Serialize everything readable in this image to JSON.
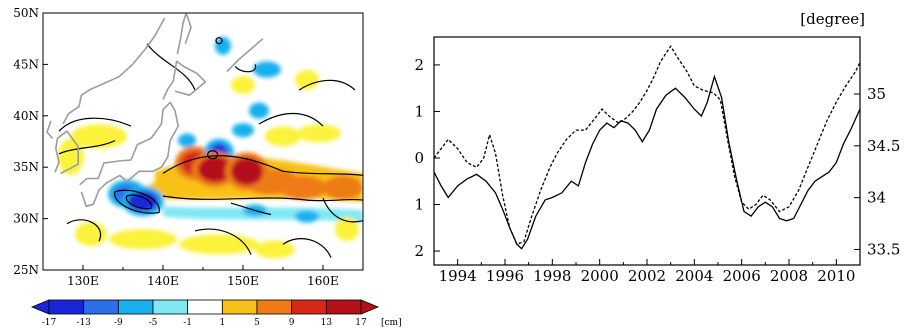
{
  "colors": {
    "scale": [
      "#1a25d8",
      "#2c6fe8",
      "#18b0ee",
      "#7fe8f4",
      "#ffffff",
      "#fbf23a",
      "#f8c117",
      "#ee7b15",
      "#d8281a",
      "#b4101a"
    ],
    "contour": "#000000",
    "coast": "#9c9c9c"
  },
  "chart_data": [
    {
      "type": "heatmap",
      "title": "",
      "x_ticks": [
        "130E",
        "140E",
        "150E",
        "160E"
      ],
      "y_ticks": [
        "50N",
        "45N",
        "40N",
        "35N",
        "30N",
        "25N"
      ],
      "xlim": [
        125,
        165
      ],
      "ylim": [
        25,
        50
      ],
      "colorbar": {
        "labels": [
          "-17",
          "-13",
          "-9",
          "-5",
          "-1",
          "1",
          "5",
          "9",
          "13",
          "17"
        ],
        "unit": "[cm]"
      },
      "anomaly_blobs": [
        {
          "lon": 146.5,
          "lat": 34.8,
          "value": 15
        },
        {
          "lon": 144.0,
          "lat": 35.4,
          "value": 13
        },
        {
          "lon": 150.5,
          "lat": 34.6,
          "value": 15
        },
        {
          "lon": 153.5,
          "lat": 33.6,
          "value": 9
        },
        {
          "lon": 157.5,
          "lat": 33.0,
          "value": 11
        },
        {
          "lon": 162.5,
          "lat": 33.0,
          "value": 9
        },
        {
          "lon": 140.5,
          "lat": 32.8,
          "value": 7
        },
        {
          "lon": 137.5,
          "lat": 31.7,
          "value": -15
        },
        {
          "lon": 135.5,
          "lat": 32.4,
          "value": -9
        },
        {
          "lon": 147.0,
          "lat": 36.4,
          "value": -13
        },
        {
          "lon": 143.0,
          "lat": 37.6,
          "value": -7
        },
        {
          "lon": 150.0,
          "lat": 38.6,
          "value": -7
        },
        {
          "lon": 152.0,
          "lat": 40.5,
          "value": -5
        },
        {
          "lon": 153.0,
          "lat": 44.5,
          "value": -5
        },
        {
          "lon": 147.5,
          "lat": 46.8,
          "value": -5
        },
        {
          "lon": 151.5,
          "lat": 30.8,
          "value": -5
        },
        {
          "lon": 158.0,
          "lat": 30.2,
          "value": -5
        },
        {
          "lon": 132.0,
          "lat": 38.0,
          "value": 3
        },
        {
          "lon": 128.5,
          "lat": 36.0,
          "value": 3
        },
        {
          "lon": 131.0,
          "lat": 28.5,
          "value": 3
        },
        {
          "lon": 137.5,
          "lat": 28.0,
          "value": 3
        },
        {
          "lon": 147.0,
          "lat": 27.5,
          "value": 3
        },
        {
          "lon": 155.0,
          "lat": 38.0,
          "value": 3
        },
        {
          "lon": 159.5,
          "lat": 38.3,
          "value": 3
        },
        {
          "lon": 163.0,
          "lat": 29.0,
          "value": 3
        },
        {
          "lon": 158.0,
          "lat": 43.5,
          "value": 3
        },
        {
          "lon": 150.0,
          "lat": 43.0,
          "value": 3
        },
        {
          "lon": 154.0,
          "lat": 27.0,
          "value": 3
        }
      ]
    },
    {
      "type": "line",
      "title": "",
      "unit_label": "[degree]",
      "x_ticks": [
        "1994",
        "1996",
        "1998",
        "2000",
        "2002",
        "2004",
        "2006",
        "2008",
        "2010"
      ],
      "xlim": [
        1993,
        2011
      ],
      "left_axis": {
        "ticks": [
          "2",
          "1",
          "0",
          "1",
          "2"
        ],
        "ylim": [
          -2.3,
          2.6
        ]
      },
      "right_axis": {
        "ticks": [
          "35",
          "34.5",
          "34",
          "33.5"
        ],
        "ylim": [
          33.35,
          35.55
        ]
      },
      "series": [
        {
          "style": "solid",
          "axis": "left",
          "x": [
            1993.0,
            1993.3,
            1993.6,
            1994.0,
            1994.4,
            1994.8,
            1995.2,
            1995.6,
            1995.9,
            1996.2,
            1996.5,
            1996.7,
            1996.95,
            1997.3,
            1997.7,
            1998.0,
            1998.4,
            1998.8,
            1999.1,
            1999.4,
            1999.7,
            2000.0,
            2000.3,
            2000.6,
            2000.9,
            2001.2,
            2001.5,
            2001.8,
            2002.1,
            2002.4,
            2002.8,
            2003.2,
            2003.6,
            2004.0,
            2004.3,
            2004.55,
            2004.85,
            2005.15,
            2005.45,
            2005.8,
            2006.1,
            2006.4,
            2006.7,
            2007.0,
            2007.3,
            2007.6,
            2007.9,
            2008.2,
            2008.5,
            2008.8,
            2009.1,
            2009.4,
            2009.7,
            2010.0,
            2010.3,
            2010.6,
            2011.0
          ],
          "y": [
            -0.3,
            -0.6,
            -0.85,
            -0.6,
            -0.45,
            -0.35,
            -0.5,
            -0.75,
            -1.1,
            -1.5,
            -1.85,
            -1.95,
            -1.75,
            -1.25,
            -0.9,
            -0.85,
            -0.75,
            -0.5,
            -0.6,
            -0.1,
            0.3,
            0.6,
            0.75,
            0.65,
            0.8,
            0.75,
            0.6,
            0.35,
            0.6,
            1.05,
            1.35,
            1.5,
            1.3,
            1.05,
            0.9,
            1.2,
            1.75,
            1.3,
            0.35,
            -0.5,
            -1.15,
            -1.25,
            -1.05,
            -0.95,
            -1.05,
            -1.3,
            -1.35,
            -1.3,
            -1.0,
            -0.7,
            -0.5,
            -0.4,
            -0.3,
            -0.1,
            0.3,
            0.6,
            1.05
          ]
        },
        {
          "style": "dashed",
          "axis": "left",
          "x": [
            1993.0,
            1993.3,
            1993.6,
            1994.0,
            1994.4,
            1994.8,
            1995.1,
            1995.35,
            1995.6,
            1995.9,
            1996.2,
            1996.5,
            1996.8,
            1997.1,
            1997.5,
            1997.9,
            1998.2,
            1998.6,
            1999.0,
            1999.4,
            1999.8,
            2000.1,
            2000.4,
            2000.8,
            2001.1,
            2001.4,
            2001.7,
            2002.0,
            2002.3,
            2002.55,
            2002.8,
            2003.0,
            2003.3,
            2003.7,
            2004.0,
            2004.4,
            2004.8,
            2005.1,
            2005.4,
            2005.7,
            2006.0,
            2006.3,
            2006.6,
            2006.9,
            2007.2,
            2007.6,
            2008.0,
            2008.4,
            2008.8,
            2009.2,
            2009.6,
            2010.0,
            2010.4,
            2010.8,
            2011.0
          ],
          "y": [
            0.0,
            0.2,
            0.4,
            0.2,
            -0.1,
            -0.2,
            0.0,
            0.5,
            0.1,
            -0.8,
            -1.5,
            -1.85,
            -1.8,
            -1.3,
            -0.7,
            -0.2,
            0.1,
            0.4,
            0.6,
            0.6,
            0.85,
            1.05,
            0.9,
            0.75,
            0.85,
            1.0,
            1.2,
            1.45,
            1.75,
            2.05,
            2.25,
            2.4,
            2.15,
            1.85,
            1.55,
            1.45,
            1.4,
            1.25,
            0.4,
            -0.4,
            -0.95,
            -1.1,
            -1.0,
            -0.8,
            -0.9,
            -1.15,
            -1.05,
            -0.7,
            -0.2,
            0.3,
            0.8,
            1.2,
            1.55,
            1.85,
            2.05
          ]
        }
      ]
    }
  ]
}
